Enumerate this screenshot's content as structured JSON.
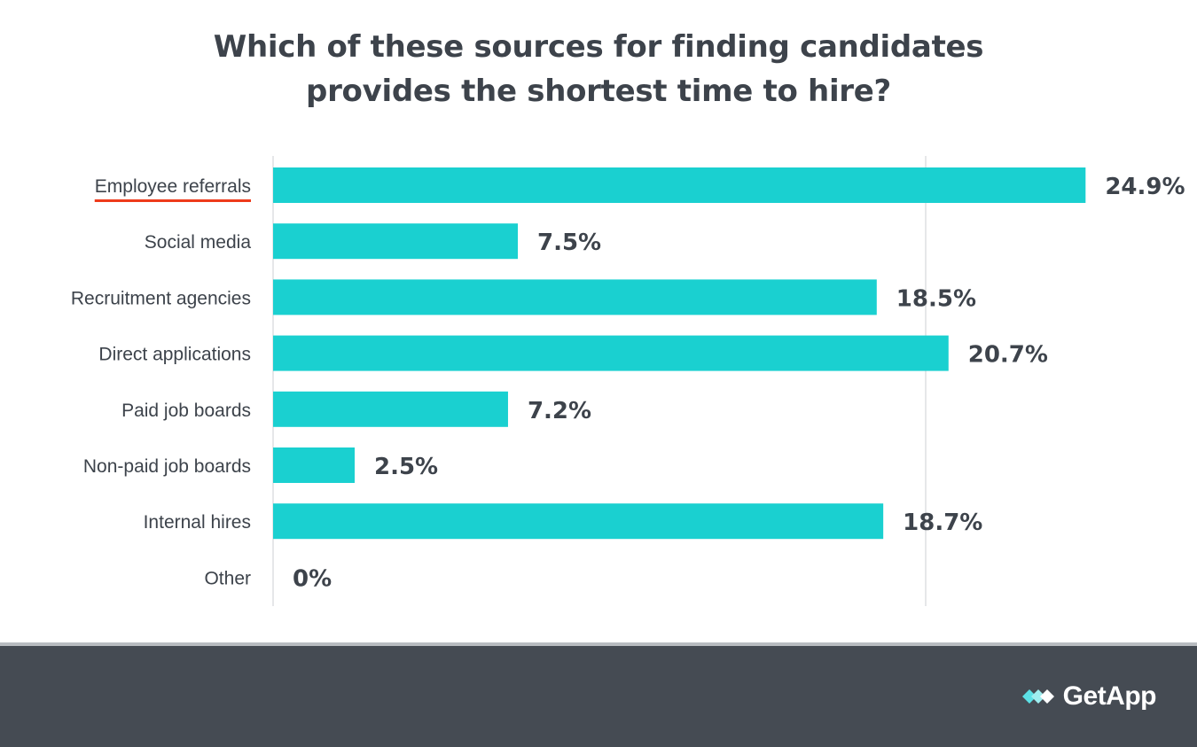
{
  "chart_data": {
    "type": "bar",
    "orientation": "horizontal",
    "title_lines": [
      "Which of these sources for finding candidates",
      "provides the shortest time to hire?"
    ],
    "categories": [
      "Employee referrals",
      "Social media",
      "Recruitment agencies",
      "Direct applications",
      "Paid job boards",
      "Non-paid job boards",
      "Internal hires",
      "Other"
    ],
    "values": [
      24.9,
      7.5,
      18.5,
      20.7,
      7.2,
      2.5,
      18.7,
      0
    ],
    "value_labels": [
      "24.9%",
      "7.5%",
      "18.5%",
      "20.7%",
      "7.2%",
      "2.5%",
      "18.7%",
      "0%"
    ],
    "highlighted_category": "Employee referrals",
    "xlim": [
      0,
      25
    ],
    "gridline_values": [
      0,
      20
    ],
    "grid": true,
    "legend": "none",
    "bar_color": "#1ad0d0",
    "highlight_color": "#ee3a1b",
    "text_color": "#3d434b",
    "grid_color": "#e6e7e9"
  },
  "footer": {
    "brand_name": "GetApp",
    "brand_icon": "getapp-logo-icon",
    "background_color": "#454b53",
    "brand_icon_color": "#5ce1e6"
  }
}
